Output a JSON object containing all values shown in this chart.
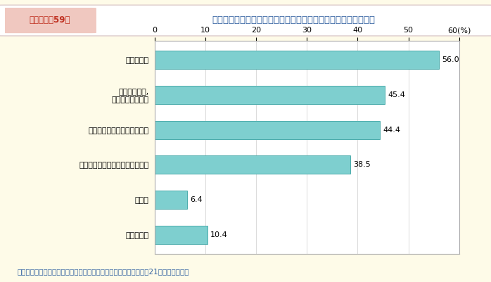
{
  "title_box_text": "第１－特－59図",
  "title_main_text": "地域社会において女性が活躍するために必要なこと（複数回答）",
  "categories": [
    "家族の理解",
    "きっかけ作り,\n実践の場への参加",
    "固定的役割分担意識の見直し",
    "ワーク・ライフ・バランスの実現",
    "その他",
    "分からない"
  ],
  "values": [
    56.0,
    45.4,
    44.4,
    38.5,
    6.4,
    10.4
  ],
  "bar_color": "#7ECFCF",
  "bar_edge_color": "#4AABAB",
  "xlim": [
    0,
    60
  ],
  "xticks": [
    0,
    10,
    20,
    30,
    40,
    50,
    60
  ],
  "xlabel": "60(%)",
  "background_color": "#FEFBE8",
  "chart_bg_color": "#FFFFFF",
  "title_outer_bg": "#FEFBE8",
  "title_inner_bg": "#FFFFFF",
  "title_box_bg": "#F0C8C0",
  "title_box_text_color": "#C03020",
  "title_main_color": "#3060A0",
  "footer_text": "（備考）内閣府「男女のライフスタイルに関する意識調査」（平成21年）より作成。",
  "footer_color": "#3060A0",
  "value_labels": [
    "56.0",
    "45.4",
    "44.4",
    "38.5",
    "6.4",
    "10.4"
  ]
}
